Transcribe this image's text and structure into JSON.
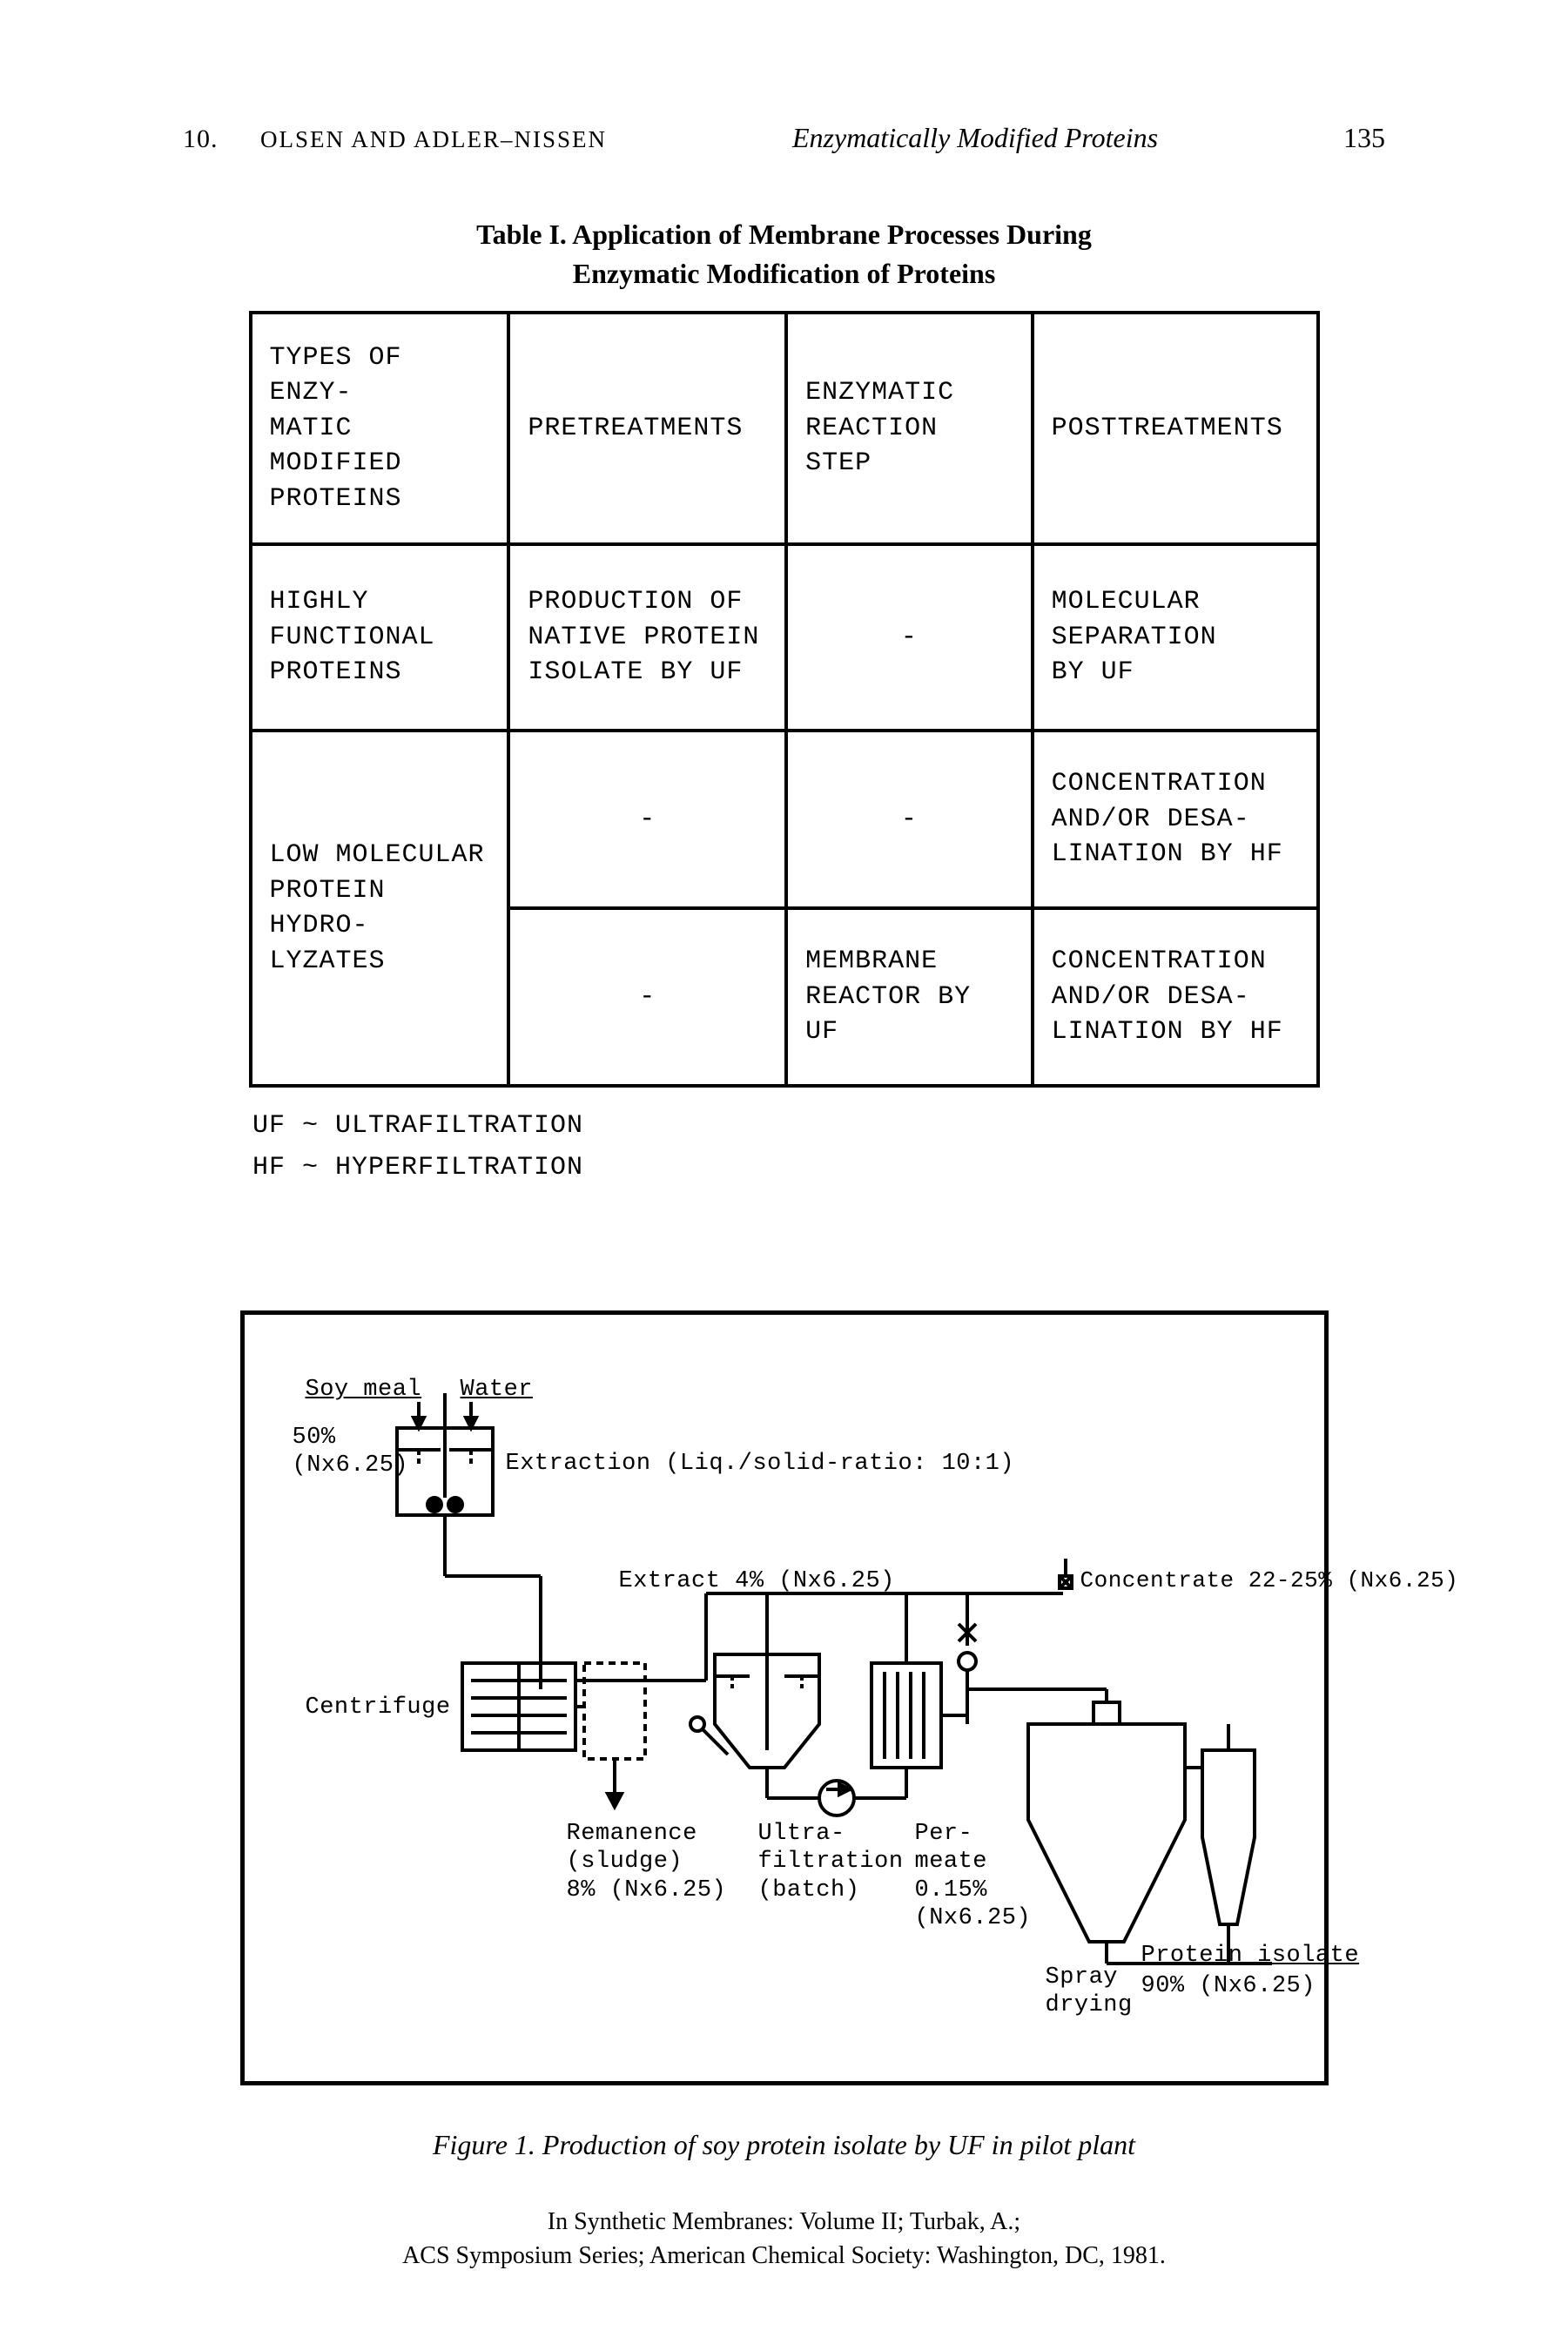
{
  "header": {
    "chapter": "10.",
    "authors": "OLSEN AND ADLER–NISSEN",
    "title": "Enzymatically Modified Proteins",
    "page": "135"
  },
  "table": {
    "caption_line1": "Table I.   Application of Membrane Processes During",
    "caption_line2": "Enzymatic Modification of Proteins",
    "columns": [
      "TYPES OF ENZY-\nMATIC MODIFIED\nPROTEINS",
      "PRETREATMENTS",
      "ENZYMATIC\nREACTION STEP",
      "POSTTREATMENTS"
    ],
    "rows": [
      {
        "c0": "HIGHLY\nFUNCTIONAL\nPROTEINS",
        "c1": "PRODUCTION OF\nNATIVE PROTEIN\nISOLATE BY UF",
        "c2": "-",
        "c3": "MOLECULAR\nSEPARATION\nBY UF"
      },
      {
        "c0_rowspan": "LOW MOLECULAR\nPROTEIN HYDRO-\nLYZATES",
        "c1": "-",
        "c2": "-",
        "c3": "CONCENTRATION\nAND/OR DESA-\nLINATION BY HF"
      },
      {
        "c1": "-",
        "c2": "MEMBRANE\nREACTOR BY\nUF",
        "c3": "CONCENTRATION\nAND/OR DESA-\nLINATION BY HF"
      }
    ],
    "legend1": "UF ~ ULTRAFILTRATION",
    "legend2": "HF ~ HYPERFILTRATION"
  },
  "figure": {
    "caption": "Figure 1.   Production of soy protein isolate by UF in pilot plant",
    "labels": {
      "soy_meal": "Soy meal",
      "water": "Water",
      "pct50": "50%\n(Nx6.25)",
      "extraction": "Extraction (Liq./solid-ratio: 10:1)",
      "extract4": "Extract 4% (Nx6.25)",
      "concentrate": "Concentrate 22-25% (Nx6.25)",
      "centrifuge": "Centrifuge",
      "remanence": "Remanence\n(sludge)\n8% (Nx6.25)",
      "uf": "Ultra-\nfiltration\n(batch)",
      "permeate": "Per-\nmeate\n0.15%\n(Nx6.25)",
      "spray": "Spray\ndrying",
      "isolate": "Protein isolate",
      "isolate_pct": "90% (Nx6.25)"
    }
  },
  "footer": {
    "line1": "In Synthetic Membranes: Volume II; Turbak, A.;",
    "line2": "ACS Symposium Series; American Chemical Society: Washington, DC, 1981."
  }
}
